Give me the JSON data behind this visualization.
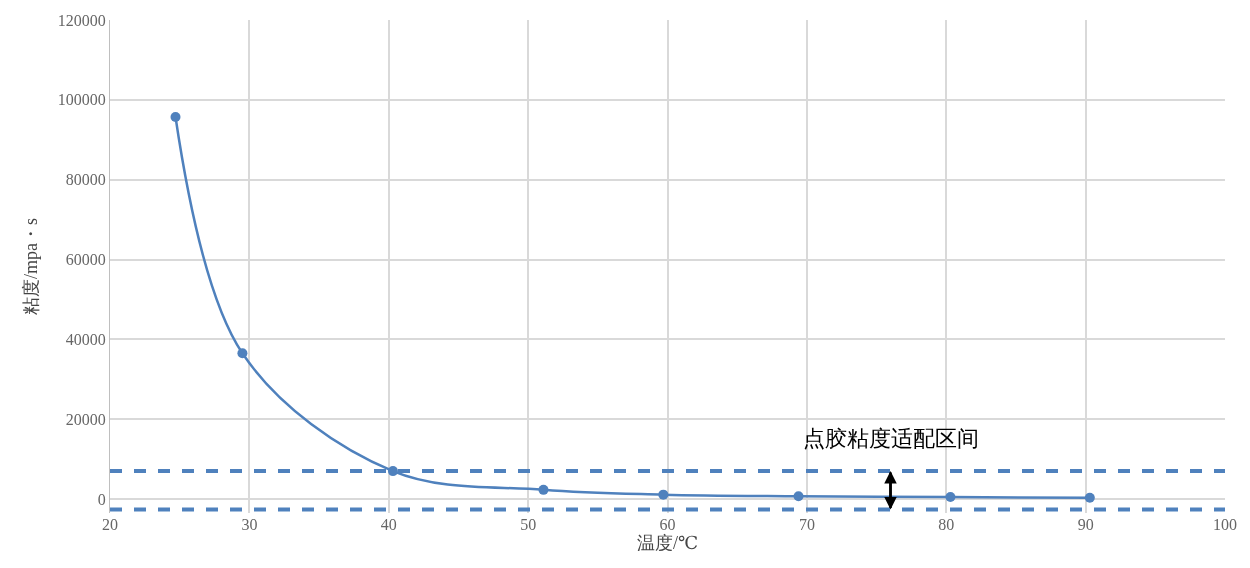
{
  "chart_data": {
    "type": "line",
    "xlabel": "温度/℃",
    "ylabel": "粘度/mpa・s",
    "x": [
      24.7,
      29.5,
      40.3,
      51.1,
      59.7,
      69.4,
      80.3,
      90.3
    ],
    "series": [
      {
        "color": "#4f81bd",
        "values": [
          95700,
          36500,
          7000,
          2300,
          1100,
          700,
          500,
          300
        ]
      }
    ],
    "xlim": [
      20,
      100
    ],
    "xticks": [
      20,
      30,
      40,
      50,
      60,
      70,
      80,
      90,
      100
    ],
    "ylim": [
      -3500,
      120000
    ],
    "yticks": [
      0,
      20000,
      40000,
      60000,
      80000,
      100000,
      120000
    ],
    "grid": true,
    "marker": "circle",
    "line_style": "solid",
    "ref_lines": [
      {
        "axis": "y",
        "value": 7000,
        "color": "#4f81bd",
        "line_style": "dashed"
      },
      {
        "axis": "y",
        "value": -2600,
        "color": "#4f81bd",
        "line_style": "dashed"
      }
    ],
    "annotations": [
      {
        "text": "点胶粘度适配区间",
        "x": 76,
        "y": 7000
      }
    ]
  }
}
